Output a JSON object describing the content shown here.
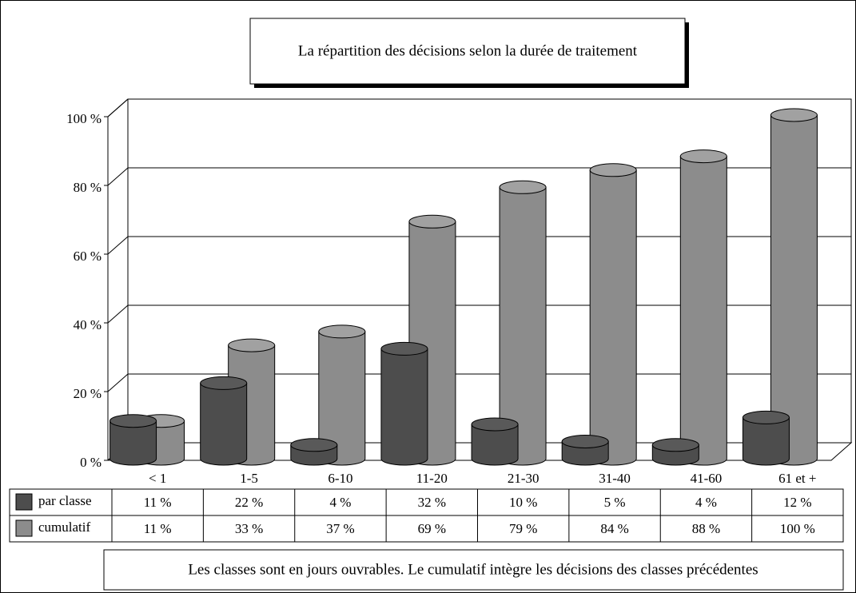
{
  "chart_data": {
    "type": "cylinder-bar",
    "title": "La répartition des décisions selon la durée de traitement",
    "note": "Les classes sont en jours ouvrables. Le cumulatif intègre les décisions des classes précédentes",
    "categories": [
      "< 1",
      "1-5",
      "6-10",
      "11-20",
      "21-30",
      "31-40",
      "41-60",
      "61 et +"
    ],
    "series": [
      {
        "name": "par classe",
        "color": "#4d4d4d",
        "values": [
          11,
          22,
          4,
          32,
          10,
          5,
          4,
          12
        ],
        "value_labels": [
          "11 %",
          "22 %",
          "4 %",
          "32 %",
          "10 %",
          "5 %",
          "4 %",
          "12 %"
        ]
      },
      {
        "name": "cumulatif",
        "color": "#8c8c8c",
        "values": [
          11,
          33,
          37,
          69,
          79,
          84,
          88,
          100
        ],
        "value_labels": [
          "11 %",
          "33 %",
          "37 %",
          "69 %",
          "79 %",
          "84 %",
          "88 %",
          "100 %"
        ]
      }
    ],
    "ylim": [
      0,
      100
    ],
    "yticks": [
      {
        "value": 0,
        "label": "0 %"
      },
      {
        "value": 20,
        "label": "20 %"
      },
      {
        "value": 40,
        "label": "40 %"
      },
      {
        "value": 60,
        "label": "60 %"
      },
      {
        "value": 80,
        "label": "80 %"
      },
      {
        "value": 100,
        "label": "100 %"
      }
    ],
    "grid": true
  }
}
